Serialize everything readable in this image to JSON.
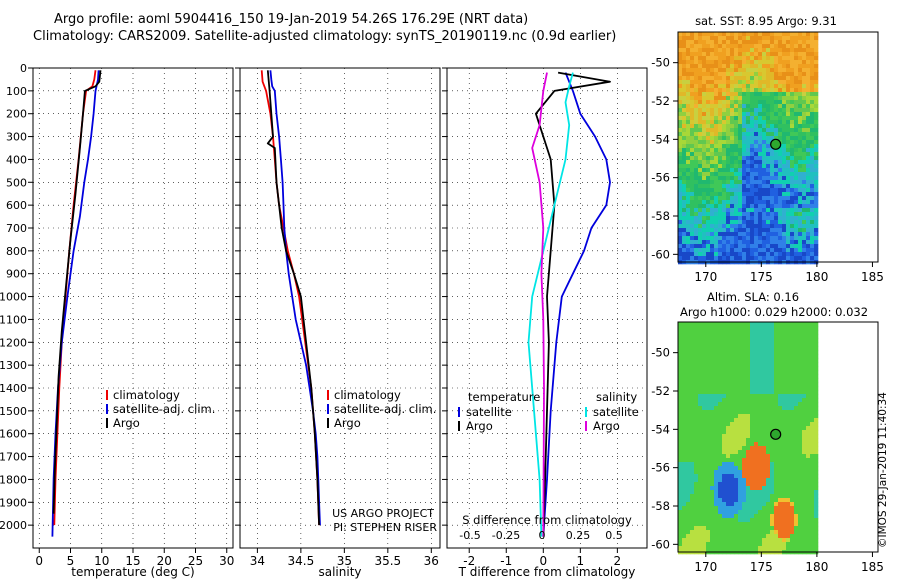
{
  "title_line1": "Argo profile: aoml 5904416_150 19-Jan-2019 54.26S 176.29E (NRT data)",
  "title_line2": "Climatology: CARS2009. Satellite-adjusted climatology: synTS_20190119.nc (0.9d earlier)",
  "credit": "©IMOS 29-Jan-2019 11:40:34",
  "colors": {
    "climatology": "#ee0000",
    "satellite": "#0000dd",
    "argo": "#000000",
    "argo_salinity": "#dd00dd",
    "satellite_salinity": "#00e5e5",
    "marker": "#2ea82e"
  },
  "chart_data": [
    {
      "type": "line",
      "id": "temperature",
      "xlabel": "temperature (deg C)",
      "ylabel": "",
      "xlim": [
        -1,
        31
      ],
      "ylim": [
        2100,
        0
      ],
      "xticks": [
        "0",
        "5",
        "10",
        "15",
        "20",
        "25",
        "30"
      ],
      "yticks": [
        "0",
        "100",
        "200",
        "300",
        "400",
        "500",
        "600",
        "700",
        "800",
        "900",
        "1000",
        "1100",
        "1200",
        "1300",
        "1400",
        "1500",
        "1600",
        "1700",
        "1800",
        "1900",
        "2000"
      ],
      "legend": [
        "climatology",
        "satellite-adj. clim.",
        "Argo"
      ],
      "series": [
        {
          "name": "climatology",
          "color": "#ee0000",
          "points": [
            [
              9.0,
              10
            ],
            [
              8.8,
              50
            ],
            [
              8.5,
              80
            ],
            [
              7.5,
              100
            ],
            [
              7.0,
              200
            ],
            [
              6.3,
              400
            ],
            [
              5.5,
              600
            ],
            [
              4.8,
              800
            ],
            [
              4.2,
              1000
            ],
            [
              3.6,
              1200
            ],
            [
              3.2,
              1400
            ],
            [
              2.9,
              1600
            ],
            [
              2.6,
              1800
            ],
            [
              2.4,
              2000
            ]
          ]
        },
        {
          "name": "satellite-adj. clim.",
          "color": "#0000dd",
          "points": [
            [
              9.5,
              10
            ],
            [
              9.4,
              50
            ],
            [
              9.0,
              100
            ],
            [
              8.7,
              200
            ],
            [
              8.3,
              300
            ],
            [
              7.8,
              400
            ],
            [
              7.2,
              500
            ],
            [
              6.5,
              650
            ],
            [
              5.5,
              800
            ],
            [
              4.5,
              1000
            ],
            [
              3.6,
              1200
            ],
            [
              3.0,
              1400
            ],
            [
              2.6,
              1600
            ],
            [
              2.3,
              1800
            ],
            [
              2.1,
              2050
            ]
          ]
        },
        {
          "name": "Argo",
          "color": "#000000",
          "points": [
            [
              9.8,
              10
            ],
            [
              9.6,
              60
            ],
            [
              9.0,
              80
            ],
            [
              7.3,
              100
            ],
            [
              7.0,
              200
            ],
            [
              6.5,
              350
            ],
            [
              5.8,
              550
            ],
            [
              5.0,
              750
            ],
            [
              4.3,
              950
            ],
            [
              3.6,
              1150
            ],
            [
              3.1,
              1350
            ],
            [
              2.8,
              1550
            ],
            [
              2.5,
              1750
            ],
            [
              2.3,
              1950
            ]
          ]
        }
      ]
    },
    {
      "type": "line",
      "id": "salinity",
      "xlabel": "salinity",
      "ylabel": "",
      "xlim": [
        33.8,
        36.1
      ],
      "ylim": [
        2100,
        0
      ],
      "xticks": [
        "34",
        "34.5",
        "35",
        "35.5",
        "36"
      ],
      "legend": [
        "climatology",
        "satellite-adj. clim.",
        "Argo"
      ],
      "annotation_line1": "US ARGO PROJECT",
      "annotation_line2": "PI: STEPHEN RISER",
      "series": [
        {
          "name": "climatology",
          "color": "#ee0000",
          "points": [
            [
              34.05,
              10
            ],
            [
              34.06,
              60
            ],
            [
              34.1,
              100
            ],
            [
              34.15,
              200
            ],
            [
              34.18,
              300
            ],
            [
              34.2,
              400
            ],
            [
              34.22,
              500
            ],
            [
              34.25,
              600
            ],
            [
              34.3,
              700
            ],
            [
              34.35,
              800
            ],
            [
              34.42,
              900
            ],
            [
              34.48,
              1000
            ],
            [
              34.55,
              1200
            ],
            [
              34.62,
              1400
            ],
            [
              34.66,
              1600
            ],
            [
              34.69,
              1800
            ],
            [
              34.71,
              2000
            ]
          ]
        },
        {
          "name": "satellite-adj. clim.",
          "color": "#0000dd",
          "points": [
            [
              34.15,
              10
            ],
            [
              34.16,
              50
            ],
            [
              34.17,
              80
            ],
            [
              34.2,
              100
            ],
            [
              34.22,
              200
            ],
            [
              34.25,
              300
            ],
            [
              34.27,
              400
            ],
            [
              34.29,
              500
            ],
            [
              34.3,
              600
            ],
            [
              34.31,
              700
            ],
            [
              34.33,
              800
            ],
            [
              34.36,
              900
            ],
            [
              34.4,
              1000
            ],
            [
              34.44,
              1100
            ],
            [
              34.5,
              1200
            ],
            [
              34.56,
              1300
            ],
            [
              34.6,
              1400
            ],
            [
              34.64,
              1500
            ],
            [
              34.67,
              1600
            ],
            [
              34.69,
              1700
            ],
            [
              34.7,
              1800
            ],
            [
              34.71,
              1900
            ],
            [
              34.72,
              2000
            ]
          ]
        },
        {
          "name": "Argo",
          "color": "#000000",
          "points": [
            [
              34.12,
              10
            ],
            [
              34.14,
              100
            ],
            [
              34.16,
              200
            ],
            [
              34.18,
              300
            ],
            [
              34.12,
              330
            ],
            [
              34.2,
              350
            ],
            [
              34.22,
              500
            ],
            [
              34.25,
              600
            ],
            [
              34.28,
              700
            ],
            [
              34.33,
              800
            ],
            [
              34.42,
              900
            ],
            [
              34.5,
              1000
            ],
            [
              34.56,
              1200
            ],
            [
              34.62,
              1400
            ],
            [
              34.66,
              1600
            ],
            [
              34.69,
              1800
            ],
            [
              34.71,
              2000
            ]
          ]
        }
      ]
    },
    {
      "type": "line",
      "id": "difference",
      "xlabel": "T difference from climatology",
      "ylabel": "",
      "xlim": [
        -2.6,
        2.8
      ],
      "ylim": [
        2100,
        0
      ],
      "xticks": [
        "-2",
        "-1",
        "0",
        "1",
        "2"
      ],
      "secondary_label": "S difference from climatology",
      "secondary_ticks": [
        "-0.5",
        "-0.25",
        "0",
        "0.25",
        "0.5"
      ],
      "legend_left_title": "temperature",
      "legend_right_title": "salinity",
      "legend": [
        "satellite",
        "Argo",
        "satellite",
        "Argo"
      ],
      "series": [
        {
          "name": "satellite",
          "color": "#0000dd",
          "points": [
            [
              0.6,
              20
            ],
            [
              0.8,
              100
            ],
            [
              1.0,
              200
            ],
            [
              1.4,
              300
            ],
            [
              1.7,
              400
            ],
            [
              1.8,
              500
            ],
            [
              1.7,
              600
            ],
            [
              1.3,
              700
            ],
            [
              1.1,
              800
            ],
            [
              0.8,
              900
            ],
            [
              0.5,
              1000
            ],
            [
              0.35,
              1200
            ],
            [
              0.2,
              1500
            ],
            [
              0.1,
              1800
            ],
            [
              0,
              2050
            ]
          ]
        },
        {
          "name": "Argo",
          "color": "#000000",
          "points": [
            [
              0.4,
              20
            ],
            [
              1.8,
              60
            ],
            [
              0.3,
              100
            ],
            [
              -0.2,
              200
            ],
            [
              0.2,
              400
            ],
            [
              0.3,
              600
            ],
            [
              0.2,
              800
            ],
            [
              0.1,
              1000
            ],
            [
              0.15,
              1200
            ],
            [
              0.1,
              1500
            ],
            [
              0.05,
              1800
            ],
            [
              0.0,
              2050
            ]
          ]
        },
        {
          "name": "satellite",
          "color": "#00e5e5",
          "points": [
            [
              0.8,
              20
            ],
            [
              0.7,
              80
            ],
            [
              0.6,
              150
            ],
            [
              0.7,
              250
            ],
            [
              0.6,
              400
            ],
            [
              0.3,
              600
            ],
            [
              0.0,
              800
            ],
            [
              -0.3,
              1000
            ],
            [
              -0.4,
              1200
            ],
            [
              -0.3,
              1400
            ],
            [
              -0.2,
              1600
            ],
            [
              -0.1,
              1800
            ],
            [
              -0.05,
              2050
            ]
          ]
        },
        {
          "name": "Argo",
          "color": "#dd00dd",
          "points": [
            [
              0.1,
              20
            ],
            [
              0.0,
              100
            ],
            [
              -0.1,
              250
            ],
            [
              -0.3,
              350
            ],
            [
              -0.1,
              500
            ],
            [
              0.0,
              700
            ],
            [
              -0.05,
              900
            ],
            [
              0.0,
              1100
            ],
            [
              0.02,
              1400
            ],
            [
              0.01,
              1700
            ],
            [
              0.0,
              2050
            ]
          ]
        }
      ]
    },
    {
      "type": "heatmap",
      "id": "sst_map",
      "title": "sat. SST: 8.95 Argo: 9.31",
      "xlim": [
        167.5,
        185.5
      ],
      "ylim": [
        -60.4,
        -48.4
      ],
      "xticks": [
        "170",
        "175",
        "180",
        "185"
      ],
      "yticks": [
        "-50",
        "-52",
        "-54",
        "-56",
        "-58",
        "-60"
      ],
      "marker": {
        "lon": 176.29,
        "lat": -54.26
      }
    },
    {
      "type": "heatmap",
      "id": "sla_map",
      "title_line1": "Altim. SLA: 0.16",
      "title_line2": "Argo h1000: 0.029 h2000: 0.032",
      "xlim": [
        167.5,
        185.5
      ],
      "ylim": [
        -60.4,
        -48.4
      ],
      "xticks": [
        "170",
        "175",
        "180",
        "185"
      ],
      "yticks": [
        "-50",
        "-52",
        "-54",
        "-56",
        "-58",
        "-60"
      ],
      "marker": {
        "lon": 176.29,
        "lat": -54.26
      }
    }
  ]
}
